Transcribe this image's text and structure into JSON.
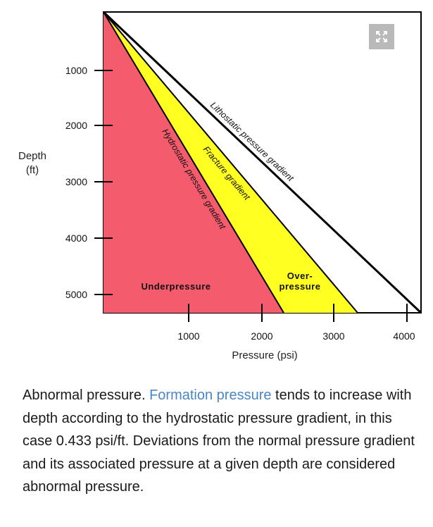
{
  "diagram": {
    "y_axis": {
      "title_line1": "Depth",
      "title_line2": "(ft)",
      "ticks": [
        "1000",
        "2000",
        "3000",
        "4000",
        "5000"
      ]
    },
    "x_axis": {
      "title": "Pressure (psi)",
      "ticks": [
        "1000",
        "2000",
        "3000",
        "4000"
      ]
    },
    "lines": {
      "lithostatic": "Lithostatic pressure gradient",
      "fracture": "Fracture gradient",
      "hydrostatic": "Hydrostatic pressure gradient"
    },
    "regions": {
      "underpressure": "Underpressure",
      "overpressure_line1": "Over-",
      "overpressure_line2": "pressure"
    },
    "colors": {
      "underpressure": "#f45b6c",
      "overpressure": "#ffff22",
      "frame": "#000000",
      "expand_button": "#b9b9b9"
    },
    "expand_icon": "expand-arrows-icon"
  },
  "caption": {
    "lead": "Abnormal pressure. ",
    "link": "Formation pressure",
    "rest": " tends to increase with depth according to the hydrostatic pressure gradient, in this case 0.433 psi/ft. Deviations from the normal pressure gradient and its associated pressure at a given depth are considered abnormal pressure."
  }
}
